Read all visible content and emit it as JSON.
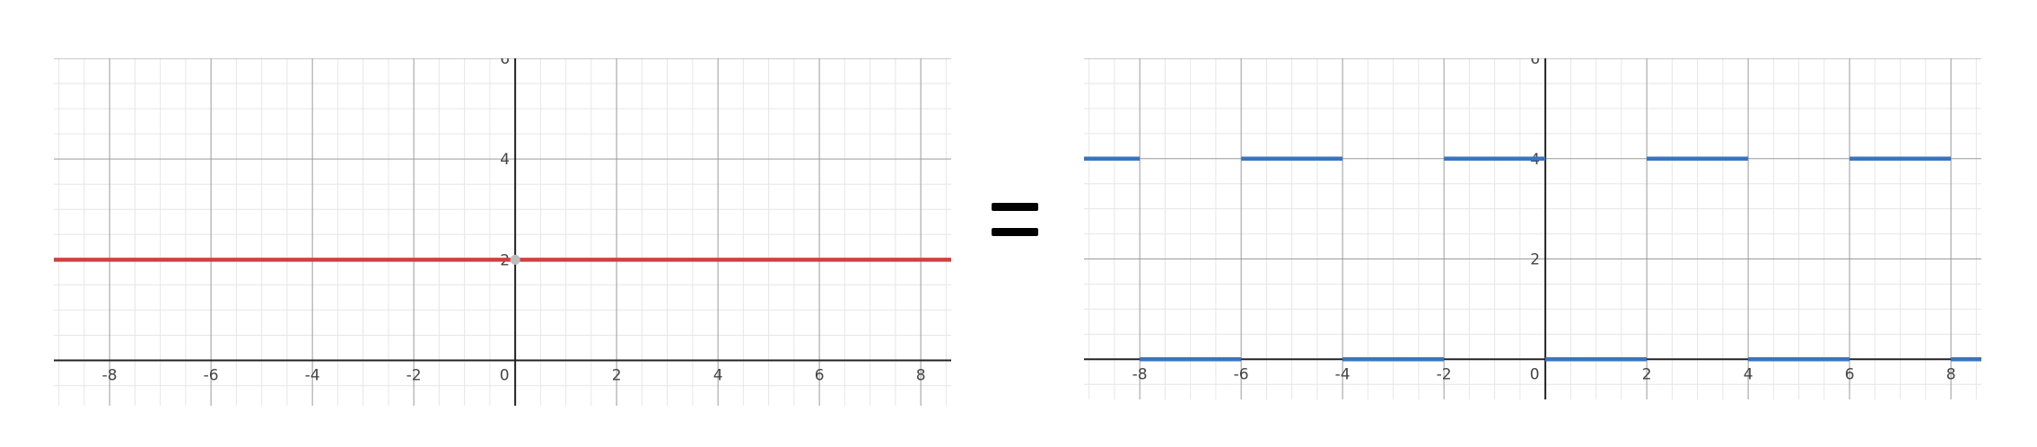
{
  "chart_data": [
    {
      "type": "line",
      "xlim": [
        -9.1,
        8.6
      ],
      "ylim": [
        -0.9,
        6
      ],
      "grid": true,
      "minor_grid": true,
      "x_ticks": [
        -8,
        -6,
        -4,
        -2,
        0,
        2,
        4,
        6,
        8
      ],
      "y_ticks": [
        2,
        4,
        6
      ],
      "series": [
        {
          "color": "#d23f3f",
          "segments": [
            [
              [
                -9.1,
                2
              ],
              [
                8.6,
                2
              ]
            ]
          ],
          "points": [
            [
              0,
              2
            ]
          ]
        }
      ]
    },
    {
      "type": "line",
      "xlim": [
        -9.1,
        8.6
      ],
      "ylim": [
        -0.8,
        6
      ],
      "grid": true,
      "minor_grid": true,
      "x_ticks": [
        -8,
        -6,
        -4,
        -2,
        0,
        2,
        4,
        6,
        8
      ],
      "y_ticks": [
        2,
        4,
        6
      ],
      "series": [
        {
          "color": "#3a74bc",
          "segments": [
            [
              [
                -9.1,
                4
              ],
              [
                -8,
                4
              ]
            ],
            [
              [
                -8,
                0
              ],
              [
                -6,
                0
              ]
            ],
            [
              [
                -6,
                4
              ],
              [
                -4,
                4
              ]
            ],
            [
              [
                -4,
                0
              ],
              [
                -2,
                0
              ]
            ],
            [
              [
                -2,
                4
              ],
              [
                0,
                4
              ]
            ],
            [
              [
                0,
                0
              ],
              [
                2,
                0
              ]
            ],
            [
              [
                2,
                4
              ],
              [
                4,
                4
              ]
            ],
            [
              [
                4,
                0
              ],
              [
                6,
                0
              ]
            ],
            [
              [
                6,
                4
              ],
              [
                8,
                4
              ]
            ],
            [
              [
                8,
                0
              ],
              [
                8.6,
                0
              ]
            ]
          ]
        }
      ]
    }
  ],
  "equals_sign": "="
}
